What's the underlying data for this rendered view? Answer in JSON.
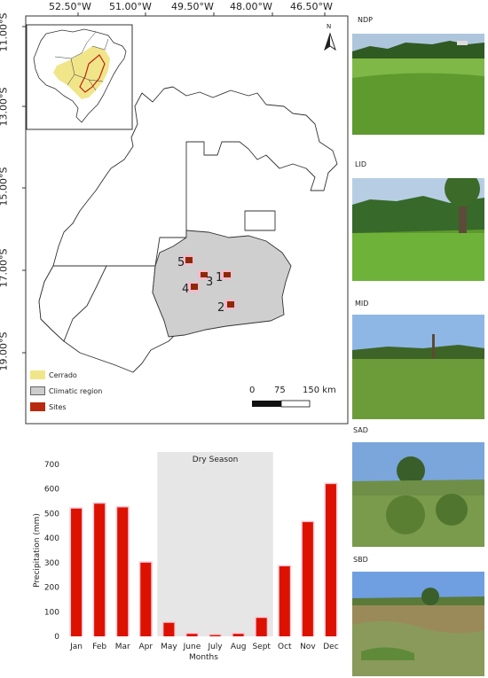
{
  "map": {
    "longitude_labels": [
      "52.50°W",
      "51.00°W",
      "49.50°W",
      "48.00°W",
      "46.50°W"
    ],
    "latitude_labels": [
      "11.00°S",
      "13.00°S",
      "15.00°S",
      "17.00°S",
      "19.00°S"
    ],
    "north_label": "N",
    "scalebar": {
      "ticks": [
        "0",
        "75",
        "150 km"
      ]
    },
    "legend": [
      {
        "label": "Cerrado",
        "color": "#f1e58a"
      },
      {
        "label": "Climatic region",
        "color": "#cccccc"
      },
      {
        "label": "Sites",
        "color": "#b82a10"
      }
    ],
    "sites": [
      {
        "label": "1"
      },
      {
        "label": "2"
      },
      {
        "label": "3"
      },
      {
        "label": "4"
      },
      {
        "label": "5"
      }
    ]
  },
  "photos": [
    {
      "label": "NDP"
    },
    {
      "label": "LID"
    },
    {
      "label": "MID"
    },
    {
      "label": "SAD"
    },
    {
      "label": "SBD"
    }
  ],
  "chart_data": {
    "type": "bar",
    "categories": [
      "Jan",
      "Feb",
      "Mar",
      "Apr",
      "May",
      "June",
      "July",
      "Aug",
      "Sept",
      "Oct",
      "Nov",
      "Dec"
    ],
    "values": [
      520,
      540,
      525,
      300,
      55,
      10,
      5,
      10,
      75,
      285,
      465,
      620
    ],
    "xlabel": "Months",
    "ylabel": "Precipitation (mm)",
    "ylim": [
      0,
      700
    ],
    "yticks": [
      0,
      100,
      200,
      300,
      400,
      500,
      600,
      700
    ],
    "annotation": "Dry Season",
    "bar_color": "#dd1100",
    "shade_color": "#e6e6e6"
  }
}
